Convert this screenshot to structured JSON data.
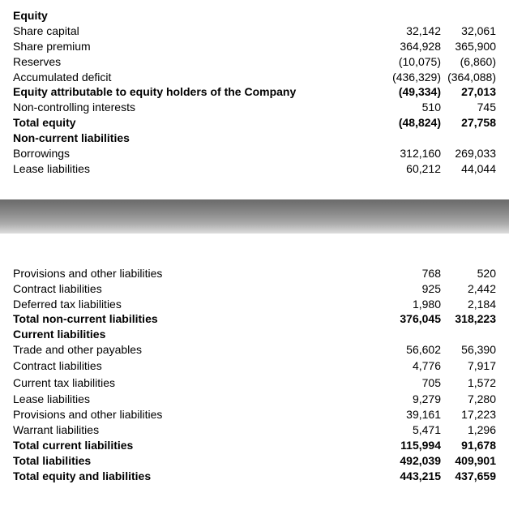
{
  "section1": {
    "header": "Equity",
    "rows": [
      {
        "label": "Share capital",
        "v1": "32,142",
        "v2": "32,061",
        "bold": false
      },
      {
        "label": "Share premium",
        "v1": "364,928",
        "v2": "365,900",
        "bold": false
      },
      {
        "label": "Reserves",
        "v1": "(10,075)",
        "v2": "(6,860)",
        "bold": false
      },
      {
        "label": "Accumulated deficit",
        "v1": "(436,329)",
        "v2": "(364,088)",
        "bold": false
      },
      {
        "label": "Equity attributable to equity holders of the Company",
        "v1": "(49,334)",
        "v2": "27,013",
        "bold": true
      },
      {
        "label": "Non-controlling interests",
        "v1": "510",
        "v2": "745",
        "bold": false
      },
      {
        "label": "Total equity",
        "v1": "(48,824)",
        "v2": "27,758",
        "bold": true
      }
    ],
    "subheader": "Non-current liabilities",
    "rows2": [
      {
        "label": "Borrowings",
        "v1": "312,160",
        "v2": "269,033",
        "bold": false
      },
      {
        "label": "Lease liabilities",
        "v1": "60,212",
        "v2": "44,044",
        "bold": false
      }
    ]
  },
  "section2": {
    "rows": [
      {
        "label": "Provisions and other liabilities",
        "v1": "768",
        "v2": "520",
        "bold": false
      },
      {
        "label": "Contract liabilities",
        "v1": "925",
        "v2": "2,442",
        "bold": false
      },
      {
        "label": "Deferred tax liabilities",
        "v1": "1,980",
        "v2": "2,184",
        "bold": false
      },
      {
        "label": "Total non-current liabilities",
        "v1": "376,045",
        "v2": "318,223",
        "bold": true
      }
    ],
    "subheader": "Current liabilities",
    "rows2": [
      {
        "label": "Trade and other payables",
        "v1": "56,602",
        "v2": "56,390",
        "bold": false,
        "loose": false
      },
      {
        "label": "Contract liabilities",
        "v1": "4,776",
        "v2": "7,917",
        "bold": false,
        "loose": true
      },
      {
        "label": "Current tax liabilities",
        "v1": "705",
        "v2": "1,572",
        "bold": false,
        "loose": true
      },
      {
        "label": "Lease liabilities",
        "v1": "9,279",
        "v2": "7,280",
        "bold": false,
        "loose": false
      },
      {
        "label": "Provisions and other liabilities",
        "v1": "39,161",
        "v2": "17,223",
        "bold": false,
        "loose": false
      },
      {
        "label": "Warrant liabilities",
        "v1": "5,471",
        "v2": "1,296",
        "bold": false,
        "loose": false
      },
      {
        "label": "Total current liabilities",
        "v1": "115,994",
        "v2": "91,678",
        "bold": true,
        "loose": false
      },
      {
        "label": "Total liabilities",
        "v1": "492,039",
        "v2": "409,901",
        "bold": true,
        "loose": false
      },
      {
        "label": "Total equity and liabilities",
        "v1": "443,215",
        "v2": "437,659",
        "bold": true,
        "loose": false
      }
    ]
  }
}
